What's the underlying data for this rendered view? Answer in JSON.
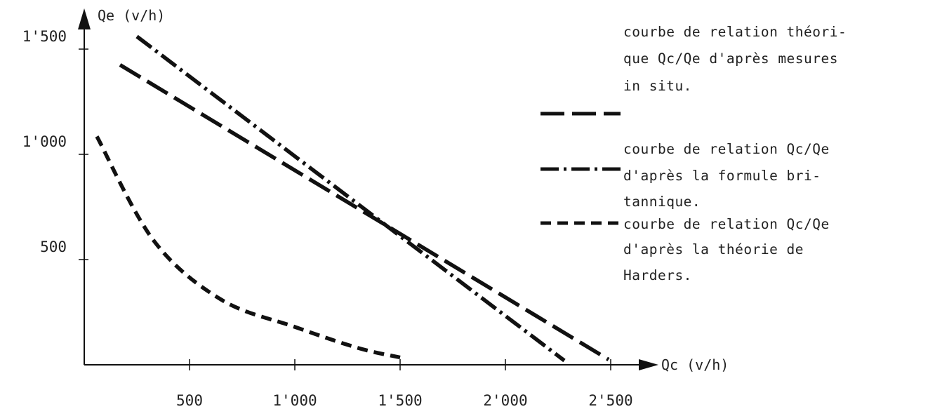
{
  "chart_data": {
    "type": "line",
    "xlabel": "Qc (v/h)",
    "ylabel": "Qe (v/h)",
    "xlim": [
      0,
      2500
    ],
    "ylim": [
      0,
      1600
    ],
    "x_ticks": [
      500,
      1000,
      1500,
      2000,
      2500
    ],
    "x_tick_labels": [
      "500",
      "1'000",
      "1'500",
      "2'000",
      "2'500"
    ],
    "y_ticks": [
      500,
      1000,
      1500
    ],
    "y_tick_labels": [
      "500",
      "1'000",
      "1'500"
    ],
    "grid": false,
    "legend_position": "right",
    "series": [
      {
        "style": "long-dash",
        "legend_lines": [
          "courbe de relation théori-",
          "que Qc/Qe d'après mesures",
          "in situ."
        ],
        "x": [
          170,
          2490
        ],
        "y": [
          1425,
          25
        ]
      },
      {
        "style": "dash-dot",
        "legend_lines": [
          "courbe de relation Qc/Qe",
          "d'après la formule bri-",
          "tannique."
        ],
        "x": [
          250,
          2280
        ],
        "y": [
          1560,
          20
        ]
      },
      {
        "style": "short-dash",
        "legend_lines": [
          "courbe de relation Qc/Qe",
          "d'après la théorie de",
          "Harders."
        ],
        "x": [
          60,
          330,
          650,
          1000,
          1300,
          1500
        ],
        "y": [
          1085,
          590,
          310,
          180,
          80,
          35
        ]
      }
    ]
  }
}
